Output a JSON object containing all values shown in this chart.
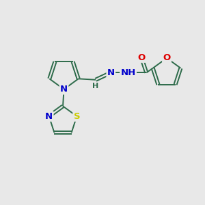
{
  "bg_color": "#e8e8e8",
  "bond_color": "#2d6b4a",
  "atom_colors": {
    "O": "#dd0000",
    "N": "#0000cc",
    "S": "#cccc00",
    "C": "#2d6b4a",
    "H": "#2d6b4a"
  },
  "figsize": [
    3.0,
    3.0
  ],
  "dpi": 100,
  "lw": 1.4,
  "fs": 9.5
}
